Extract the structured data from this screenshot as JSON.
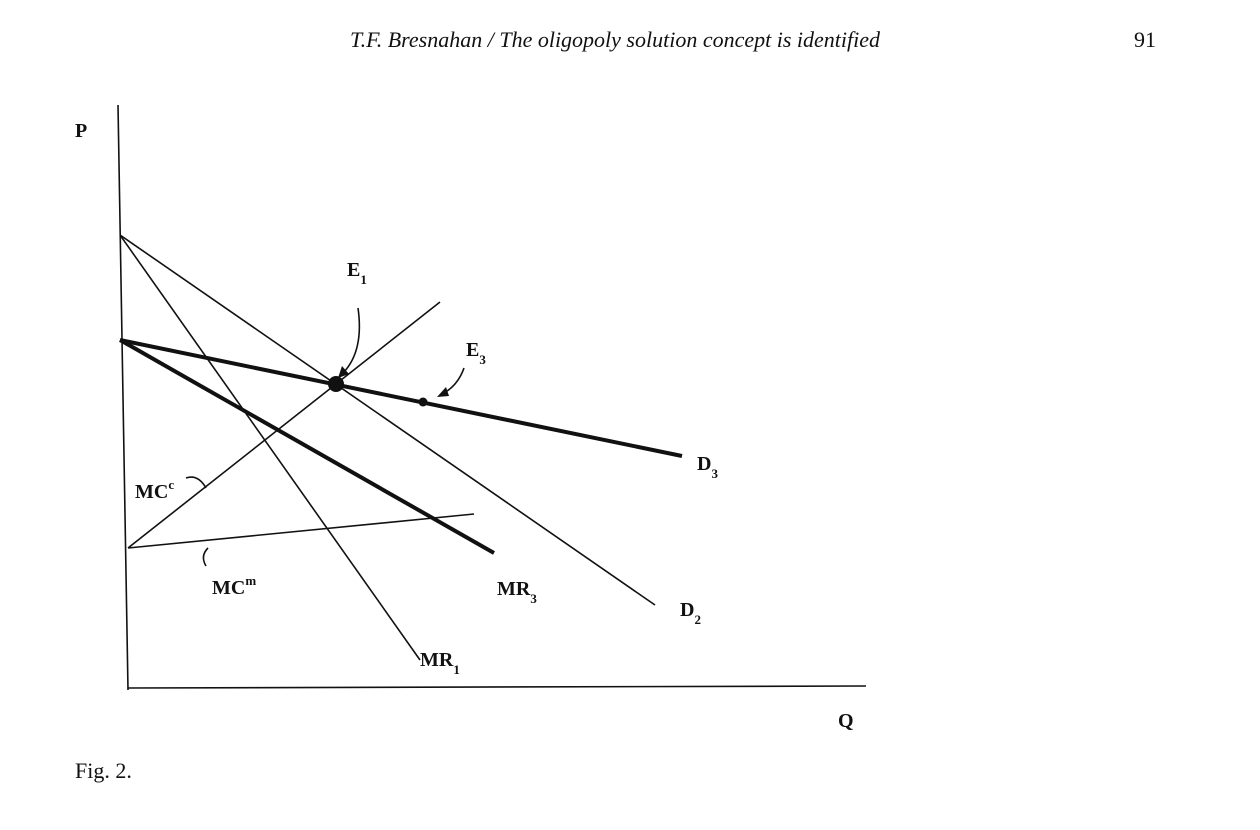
{
  "header": {
    "title": "T.F. Bresnahan / The oligopoly solution concept is identified",
    "page_number": "91"
  },
  "figure": {
    "axes": {
      "y": "P",
      "x": "Q"
    },
    "labels": {
      "E1": {
        "text": "E",
        "sub": "1"
      },
      "E3": {
        "text": "E",
        "sub": "3"
      },
      "D3": {
        "text": "D",
        "sub": "3"
      },
      "MCc": {
        "text": "MC",
        "sup": "c"
      },
      "MCm": {
        "text": "MC",
        "sup": "m"
      },
      "MR3": {
        "text": "MR",
        "sub": "3"
      },
      "D2": {
        "text": "D",
        "sub": "2"
      },
      "MR1": {
        "text": "MR",
        "sub": "1"
      }
    },
    "caption": "Fig. 2."
  }
}
